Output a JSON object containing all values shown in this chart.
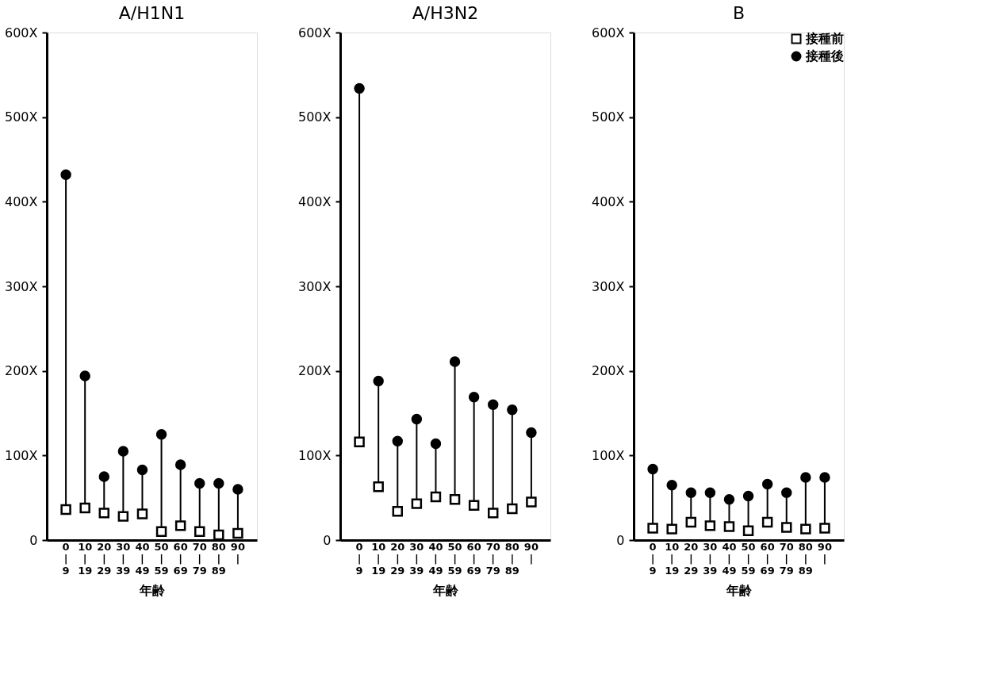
{
  "chart_data": [
    {
      "type": "scatter",
      "title": "A/H1N1",
      "xlabel": "年齢",
      "categories": [
        "0\n|\n9",
        "10\n|\n19",
        "20\n|\n29",
        "30\n|\n39",
        "40\n|\n49",
        "50\n|\n59",
        "60\n|\n69",
        "70\n|\n79",
        "80\n|\n89",
        "90\n|"
      ],
      "ylim": [
        0,
        600
      ],
      "yticks": [
        0,
        {
          "value": 100,
          "label": "100X"
        },
        {
          "value": 200,
          "label": "200X"
        },
        {
          "value": 300,
          "label": "300X"
        },
        {
          "value": 400,
          "label": "400X"
        },
        {
          "value": 500,
          "label": "500X"
        },
        {
          "value": 600,
          "label": "600X"
        }
      ],
      "grid": false,
      "legend": false,
      "series": [
        {
          "color": "#000000",
          "marker": "square",
          "values": [
            36,
            38,
            32,
            28,
            31,
            10,
            17,
            10,
            6,
            8
          ]
        },
        {
          "color": "#000000",
          "marker": "circle",
          "values": [
            432,
            194,
            75,
            105,
            83,
            125,
            89,
            67,
            67,
            60
          ]
        }
      ]
    },
    {
      "type": "scatter",
      "title": "A/H3N2",
      "xlabel": "年齢",
      "categories": [
        "0\n|\n9",
        "10\n|\n19",
        "20\n|\n29",
        "30\n|\n39",
        "40\n|\n49",
        "50\n|\n59",
        "60\n|\n69",
        "70\n|\n79",
        "80\n|\n89",
        "90\n|"
      ],
      "ylim": [
        0,
        600
      ],
      "yticks": [
        0,
        {
          "value": 100,
          "label": "100X"
        },
        {
          "value": 200,
          "label": "200X"
        },
        {
          "value": 300,
          "label": "300X"
        },
        {
          "value": 400,
          "label": "400X"
        },
        {
          "value": 500,
          "label": "500X"
        },
        {
          "value": 600,
          "label": "600X"
        }
      ],
      "grid": false,
      "legend": false,
      "series": [
        {
          "color": "#000000",
          "marker": "square",
          "values": [
            116,
            63,
            34,
            43,
            51,
            48,
            41,
            32,
            37,
            45
          ]
        },
        {
          "color": "#000000",
          "marker": "circle",
          "values": [
            534,
            188,
            117,
            143,
            114,
            211,
            169,
            160,
            154,
            127
          ]
        }
      ]
    },
    {
      "type": "scatter",
      "title": "B",
      "xlabel": "年齢",
      "categories": [
        "0\n|\n9",
        "10\n|\n19",
        "20\n|\n29",
        "30\n|\n39",
        "40\n|\n49",
        "50\n|\n59",
        "60\n|\n69",
        "70\n|\n79",
        "80\n|\n89",
        "90\n|"
      ],
      "ylim": [
        0,
        600
      ],
      "yticks": [
        0,
        {
          "value": 100,
          "label": "100X"
        },
        {
          "value": 200,
          "label": "200X"
        },
        {
          "value": 300,
          "label": "300X"
        },
        {
          "value": 400,
          "label": "400X"
        },
        {
          "value": 500,
          "label": "500X"
        },
        {
          "value": 600,
          "label": "600X"
        }
      ],
      "grid": false,
      "legend": "top right",
      "series": [
        {
          "name": "接種前",
          "color": "#000000",
          "marker": "square",
          "values": [
            14,
            13,
            21,
            17,
            16,
            11,
            21,
            15,
            13,
            14
          ]
        },
        {
          "name": "接種後",
          "color": "#000000",
          "marker": "circle",
          "values": [
            84,
            65,
            56,
            56,
            48,
            52,
            66,
            56,
            74,
            74
          ]
        }
      ]
    }
  ]
}
